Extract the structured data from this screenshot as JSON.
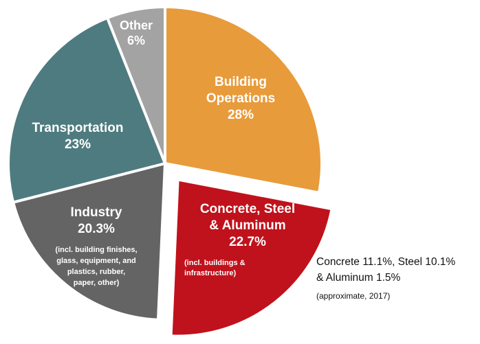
{
  "chart_data": {
    "type": "pie",
    "slices": [
      {
        "label": "Building\nOperations",
        "value": 28,
        "value_label": "28%",
        "note": "",
        "color": "#E89B3B"
      },
      {
        "label": "Concrete, Steel\n& Aluminum",
        "value": 22.7,
        "value_label": "22.7%",
        "note": "(incl. buildings &\ninfrastructure)",
        "color": "#C0121C",
        "exploded": true
      },
      {
        "label": "Industry",
        "value": 20.3,
        "value_label": "20.3%",
        "note": "(incl. building finishes,\nglass, equipment, and\nplastics, rubber,\npaper, other)",
        "color": "#646464"
      },
      {
        "label": "Transportation",
        "value": 23,
        "value_label": "23%",
        "note": "",
        "color": "#4E7B7F"
      },
      {
        "label": "Other",
        "value": 6,
        "value_label": "6%",
        "note": "",
        "color": "#A3A3A3"
      }
    ],
    "annotation": {
      "lines": [
        "Concrete 11.1%, Steel 10.1%",
        "& Aluminum 1.5%"
      ],
      "subnote": "(approximate, 2017)"
    }
  }
}
